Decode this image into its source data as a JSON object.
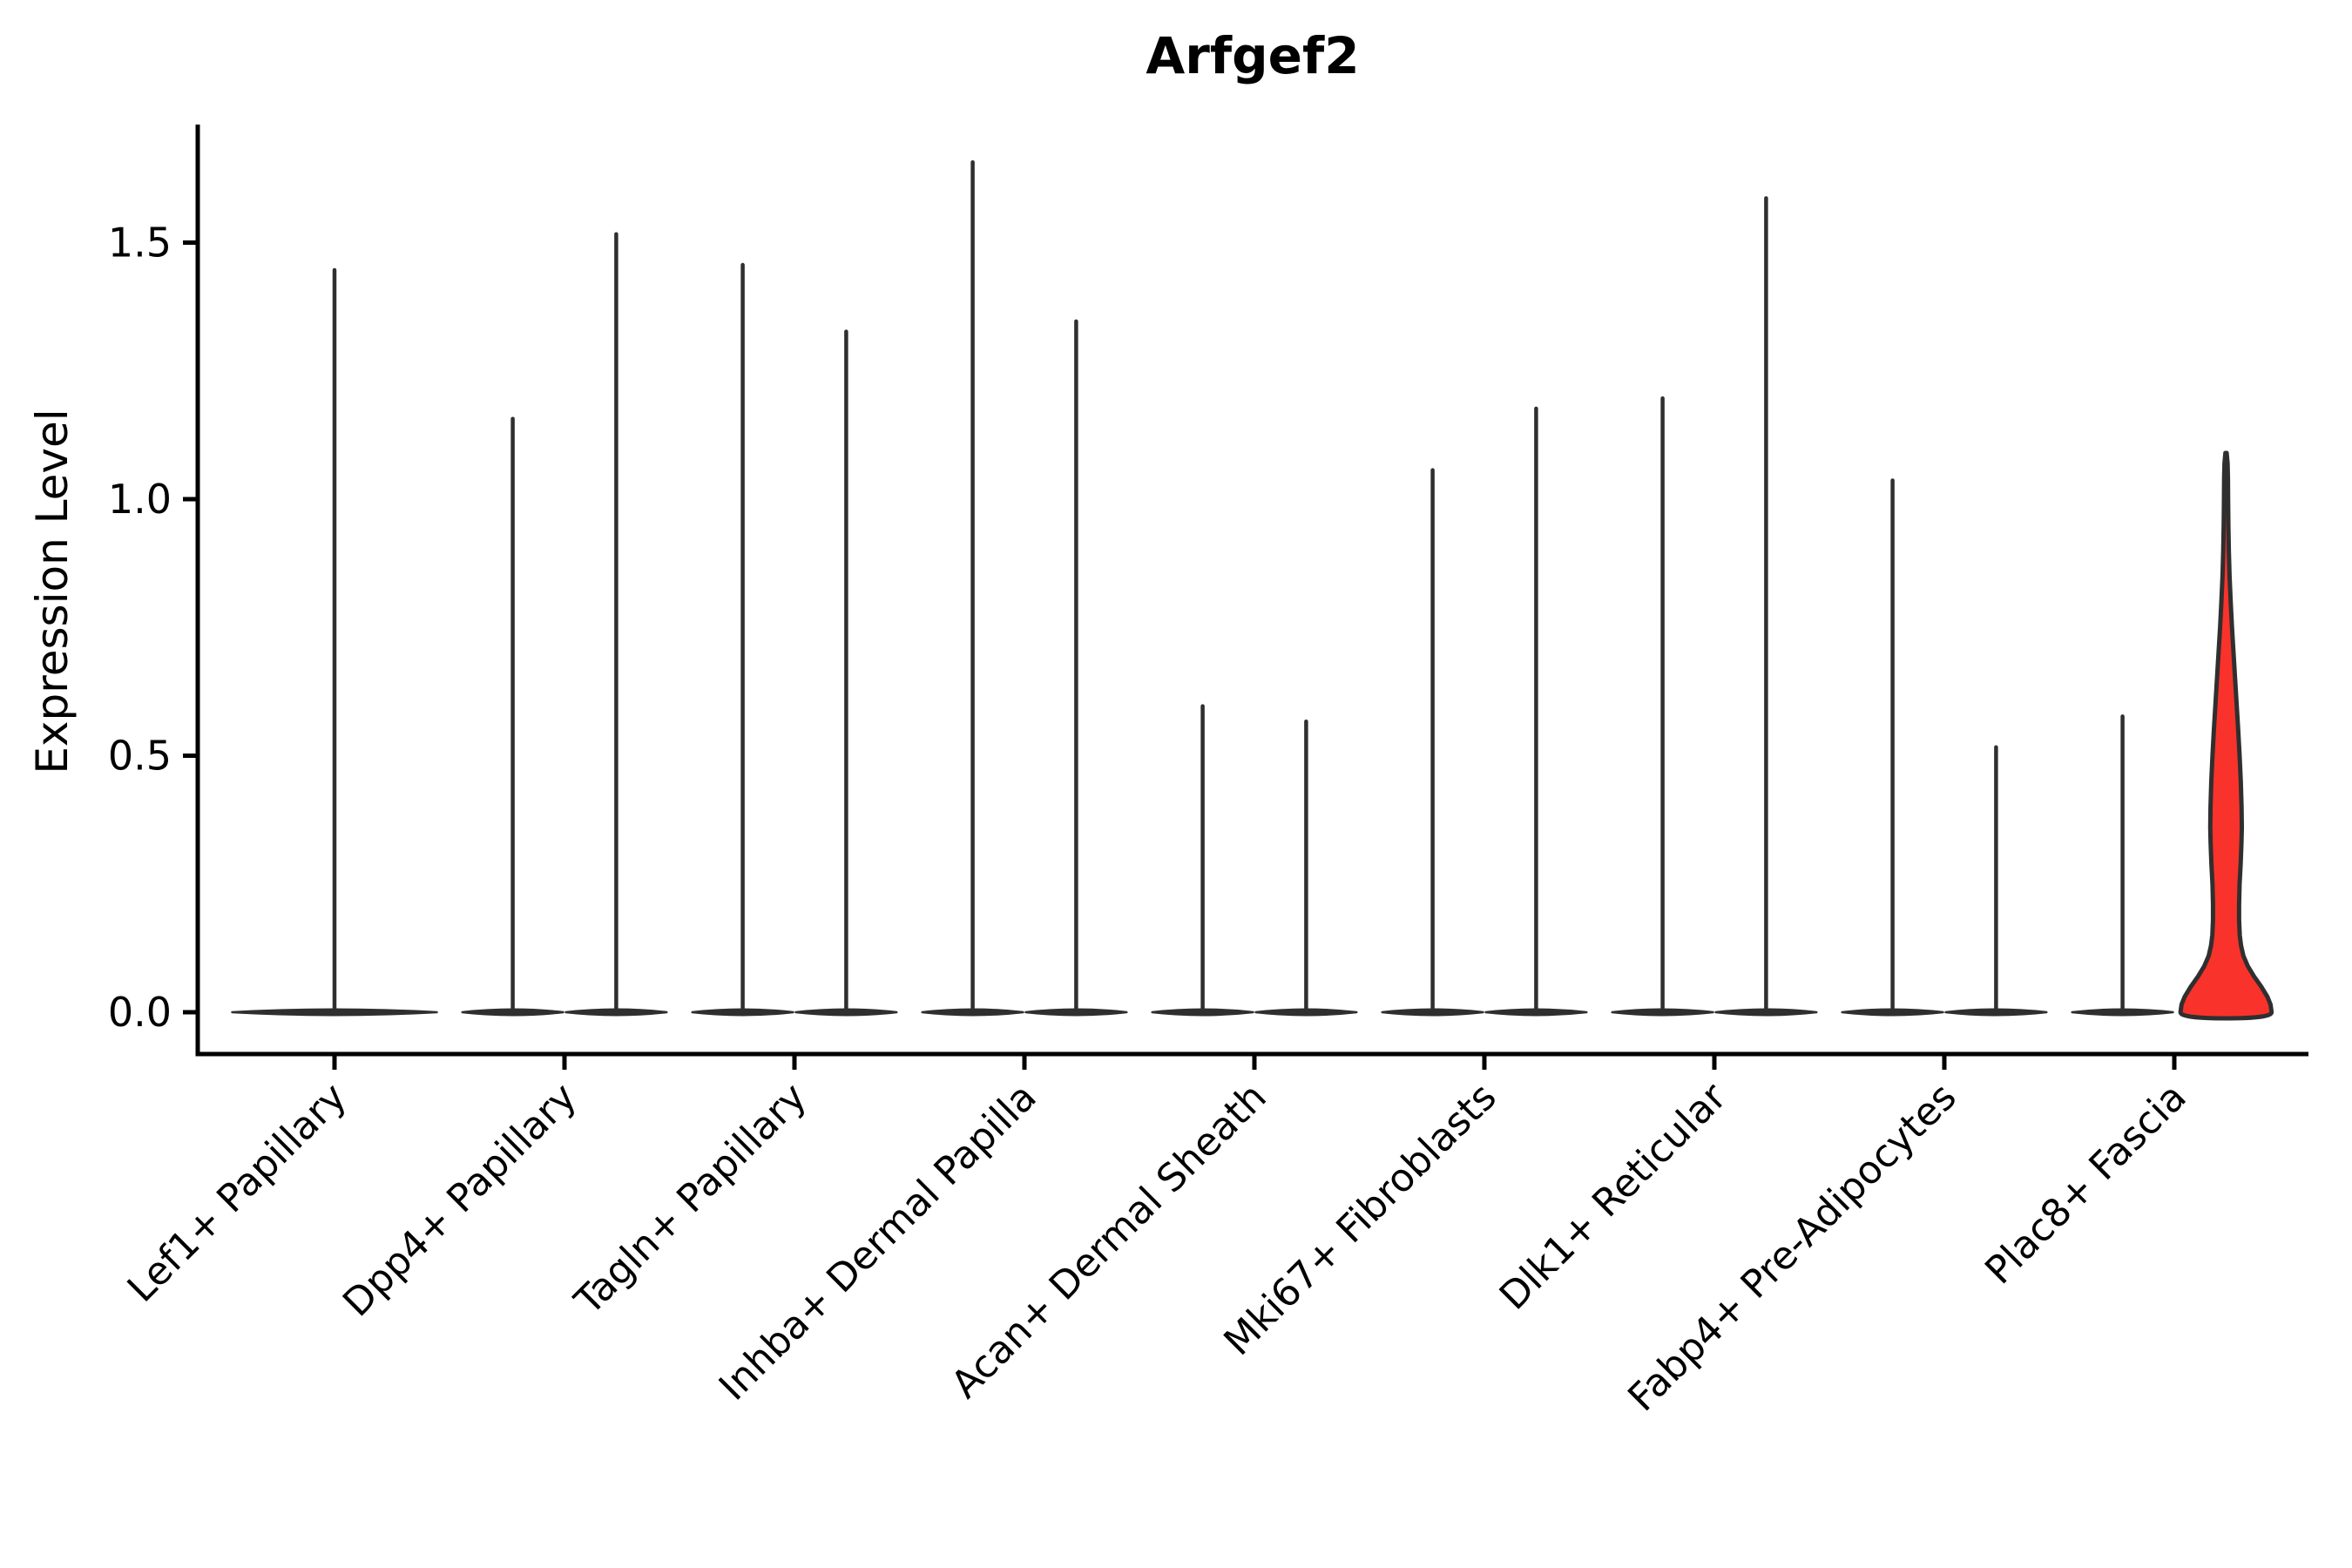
{
  "chart_data": {
    "type": "violin",
    "title": "Arfgef2",
    "ylabel": "Expression Level",
    "xlabel": "",
    "ytick_labels": [
      "0.0",
      "0.5",
      "1.0",
      "1.5"
    ],
    "ytick_values": [
      0.0,
      0.5,
      1.0,
      1.5
    ],
    "ylim": [
      -0.08,
      1.73
    ],
    "grid": false,
    "legend": null,
    "categories": [
      "Lef1+ Papillary",
      "Dpp4+ Papillary",
      "Tagln+ Papillary",
      "Inhba+ Dermal Papilla",
      "Acan+ Dermal Sheath",
      "Mki67+ Fibroblasts",
      "Dlk1+ Reticular",
      "Fabp4+ Pre-Adipocytes",
      "Plac8+ Fascia"
    ],
    "groups": [
      {
        "category": "Lef1+ Papillary",
        "violins": [
          {
            "max_expression": 1.45,
            "span": "full",
            "fill": "#ffffff"
          }
        ]
      },
      {
        "category": "Dpp4+ Papillary",
        "violins": [
          {
            "max_expression": 1.16,
            "span": "half",
            "fill": "#ffffff"
          },
          {
            "max_expression": 1.52,
            "span": "half",
            "fill": "#ffffff"
          }
        ]
      },
      {
        "category": "Tagln+ Papillary",
        "violins": [
          {
            "max_expression": 1.46,
            "span": "half",
            "fill": "#ffffff"
          },
          {
            "max_expression": 1.33,
            "span": "half",
            "fill": "#ffffff"
          }
        ]
      },
      {
        "category": "Inhba+ Dermal Papilla",
        "violins": [
          {
            "max_expression": 1.66,
            "span": "half",
            "fill": "#ffffff"
          },
          {
            "max_expression": 1.35,
            "span": "half",
            "fill": "#ffffff"
          }
        ]
      },
      {
        "category": "Acan+ Dermal Sheath",
        "violins": [
          {
            "max_expression": 0.6,
            "span": "half",
            "fill": "#ffffff"
          },
          {
            "max_expression": 0.57,
            "span": "half",
            "fill": "#ffffff"
          }
        ]
      },
      {
        "category": "Mki67+ Fibroblasts",
        "violins": [
          {
            "max_expression": 1.06,
            "span": "half",
            "fill": "#ffffff"
          },
          {
            "max_expression": 1.18,
            "span": "half",
            "fill": "#ffffff"
          }
        ]
      },
      {
        "category": "Dlk1+ Reticular",
        "violins": [
          {
            "max_expression": 1.2,
            "span": "half",
            "fill": "#ffffff"
          },
          {
            "max_expression": 1.59,
            "span": "half",
            "fill": "#ffffff"
          }
        ]
      },
      {
        "category": "Fabp4+ Pre-Adipocytes",
        "violins": [
          {
            "max_expression": 1.04,
            "span": "half",
            "fill": "#ffffff"
          },
          {
            "max_expression": 0.52,
            "span": "half",
            "fill": "#ffffff"
          }
        ]
      },
      {
        "category": "Plac8+ Fascia",
        "violins": [
          {
            "max_expression": 0.58,
            "span": "half",
            "fill": "#ffffff"
          },
          {
            "max_expression": 1.09,
            "span": "half",
            "fill": "#f9332b",
            "highlight": true,
            "profile": [
              [
                0.0,
                0.88
              ],
              [
                0.015,
                0.86
              ],
              [
                0.03,
                0.8
              ],
              [
                0.05,
                0.68
              ],
              [
                0.07,
                0.54
              ],
              [
                0.09,
                0.42
              ],
              [
                0.11,
                0.335
              ],
              [
                0.13,
                0.29
              ],
              [
                0.15,
                0.265
              ],
              [
                0.18,
                0.252
              ],
              [
                0.21,
                0.252
              ],
              [
                0.25,
                0.262
              ],
              [
                0.29,
                0.283
              ],
              [
                0.33,
                0.298
              ],
              [
                0.36,
                0.305
              ],
              [
                0.4,
                0.3
              ],
              [
                0.45,
                0.285
              ],
              [
                0.5,
                0.262
              ],
              [
                0.55,
                0.235
              ],
              [
                0.6,
                0.205
              ],
              [
                0.65,
                0.175
              ],
              [
                0.7,
                0.145
              ],
              [
                0.75,
                0.115
              ],
              [
                0.8,
                0.09
              ],
              [
                0.85,
                0.068
              ],
              [
                0.9,
                0.054
              ],
              [
                0.95,
                0.045
              ],
              [
                1.0,
                0.04
              ],
              [
                1.04,
                0.037
              ],
              [
                1.07,
                0.03
              ],
              [
                1.09,
                0.012
              ]
            ]
          }
        ]
      }
    ],
    "colors": {
      "background": "#ffffff",
      "axis": "#000000",
      "text": "#000000",
      "violin_outline": "#2f2f2f",
      "highlight_fill": "#f9332b"
    }
  }
}
